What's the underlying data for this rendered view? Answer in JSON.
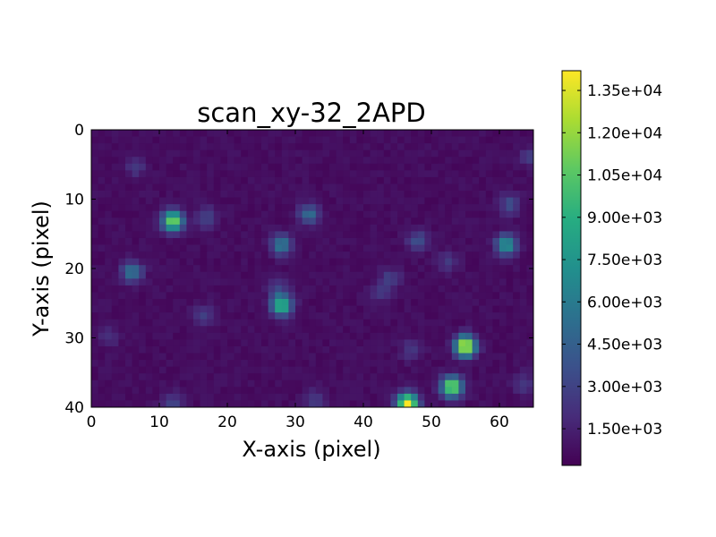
{
  "chart_data": {
    "type": "heatmap",
    "title": "scan_xy-32_2APD",
    "xlabel": "X-axis (pixel)",
    "ylabel": "Y-axis (pixel)",
    "xlim": [
      0,
      65
    ],
    "ylim": [
      40,
      0
    ],
    "xticks": [
      "0",
      "10",
      "20",
      "30",
      "40",
      "50",
      "60"
    ],
    "yticks": [
      "0",
      "10",
      "20",
      "30",
      "40"
    ],
    "colorbar": {
      "colormap": "viridis",
      "range": [
        200,
        14200
      ],
      "ticks": [
        "1.50e+03",
        "3.00e+03",
        "4.50e+03",
        "6.00e+03",
        "7.50e+03",
        "9.00e+03",
        "1.05e+04",
        "1.20e+04",
        "1.35e+04"
      ]
    },
    "background_level": 700,
    "spots": [
      {
        "x": 11.5,
        "y": 13,
        "peak": 11000
      },
      {
        "x": 16.5,
        "y": 12.5,
        "peak": 2600
      },
      {
        "x": 5.5,
        "y": 20.5,
        "peak": 5200
      },
      {
        "x": 27.5,
        "y": 16.5,
        "peak": 5500
      },
      {
        "x": 27.5,
        "y": 25.5,
        "peak": 9000
      },
      {
        "x": 27,
        "y": 23,
        "peak": 2400
      },
      {
        "x": 31.5,
        "y": 12,
        "peak": 4500
      },
      {
        "x": 47.5,
        "y": 16,
        "peak": 3200
      },
      {
        "x": 43.5,
        "y": 21.5,
        "peak": 2200
      },
      {
        "x": 42,
        "y": 23.5,
        "peak": 2000
      },
      {
        "x": 52,
        "y": 19,
        "peak": 1800
      },
      {
        "x": 60.5,
        "y": 16.5,
        "peak": 7000
      },
      {
        "x": 61,
        "y": 10.5,
        "peak": 3000
      },
      {
        "x": 54.5,
        "y": 31.5,
        "peak": 13500
      },
      {
        "x": 52.5,
        "y": 37.5,
        "peak": 11500
      },
      {
        "x": 46,
        "y": 40,
        "peak": 13800
      },
      {
        "x": 16,
        "y": 27,
        "peak": 2400
      },
      {
        "x": 6,
        "y": 5,
        "peak": 1800
      },
      {
        "x": 32.5,
        "y": 39.5,
        "peak": 2000
      },
      {
        "x": 46.5,
        "y": 32,
        "peak": 1900
      },
      {
        "x": 63,
        "y": 37,
        "peak": 2000
      },
      {
        "x": 11.5,
        "y": 40,
        "peak": 2600
      },
      {
        "x": 64,
        "y": 3.5,
        "peak": 1900
      },
      {
        "x": 2,
        "y": 30,
        "peak": 1600
      }
    ]
  }
}
